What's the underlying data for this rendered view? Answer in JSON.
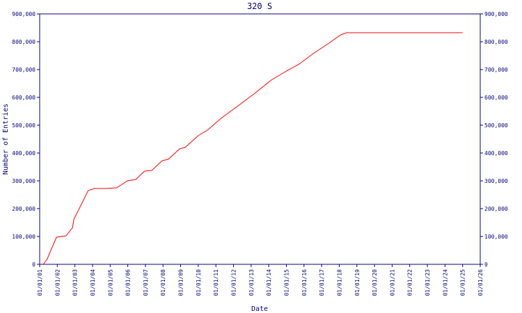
{
  "chart_data": {
    "type": "line",
    "title": "320 S",
    "xlabel": "Date",
    "ylabel": "Number of Entries",
    "x": [
      "03/15/01",
      "06/01/01",
      "09/01/01",
      "12/15/01",
      "07/01/02",
      "10/10/02",
      "11/10/02",
      "12/10/02",
      "03/15/03",
      "10/01/03",
      "02/15/04",
      "10/01/04",
      "05/15/05",
      "12/25/05",
      "06/15/06",
      "12/15/06",
      "05/10/07",
      "12/15/07",
      "04/20/08",
      "12/10/08",
      "04/01/09",
      "01/01/10",
      "07/10/10",
      "04/20/11",
      "05/15/12",
      "03/01/13",
      "02/25/14",
      "12/10/14",
      "09/25/15",
      "07/10/16",
      "04/20/17",
      "02/05/18",
      "06/01/18",
      "01/01/25"
    ],
    "series": [
      {
        "name": "320 S",
        "color": "#ff0000",
        "values": [
          0,
          17500,
          55000,
          97500,
          102500,
          125000,
          130000,
          162500,
          195000,
          265000,
          272500,
          272500,
          275000,
          300000,
          305000,
          335000,
          337500,
          372500,
          377500,
          415000,
          420000,
          462500,
          482500,
          525000,
          575000,
          612500,
          662500,
          692500,
          720000,
          757500,
          790000,
          825000,
          832500,
          832500
        ]
      }
    ],
    "xlim": [
      "01/01/01",
      "01/01/26"
    ],
    "xticks": [
      "01/01/01",
      "01/01/02",
      "01/01/03",
      "01/01/04",
      "01/01/05",
      "01/01/06",
      "01/01/07",
      "01/01/08",
      "01/01/09",
      "01/01/10",
      "01/01/11",
      "01/01/12",
      "01/01/13",
      "01/01/14",
      "01/01/15",
      "01/01/16",
      "01/01/17",
      "01/01/18",
      "01/01/19",
      "01/01/20",
      "01/01/21",
      "01/01/22",
      "01/01/23",
      "01/01/24",
      "01/01/25",
      "01/01/26"
    ],
    "ylim": [
      0,
      900000
    ],
    "yticks": [
      0,
      {
        "value": 100000,
        "label": "100,000"
      },
      {
        "value": 200000,
        "label": "200,000"
      },
      {
        "value": 300000,
        "label": "300,000"
      },
      {
        "value": 400000,
        "label": "400,000"
      },
      {
        "value": 500000,
        "label": "500,000"
      },
      {
        "value": 600000,
        "label": "600,000"
      },
      {
        "value": 700000,
        "label": "700,000"
      },
      {
        "value": 800000,
        "label": "800,000"
      },
      {
        "value": 900000,
        "label": "900,000"
      }
    ],
    "axis_color": "#000080"
  }
}
